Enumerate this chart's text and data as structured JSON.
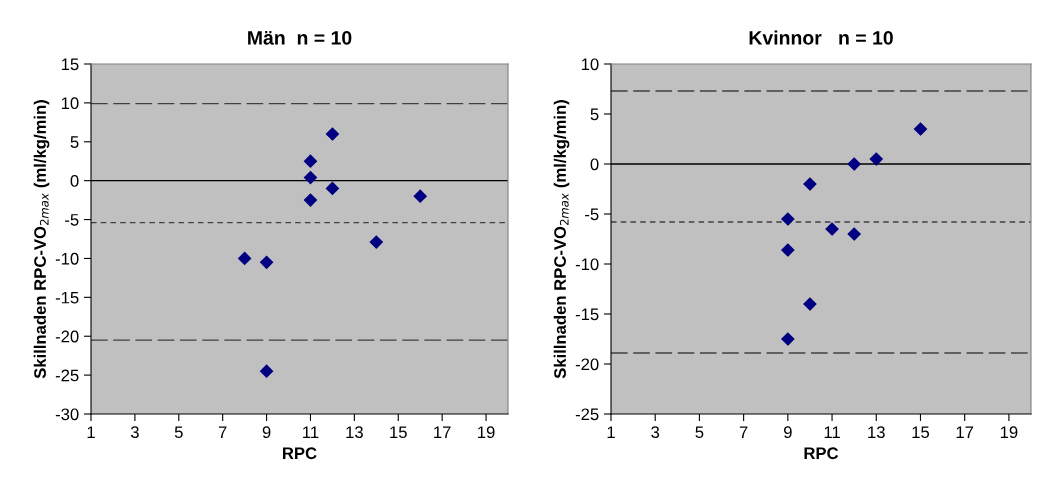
{
  "chart_data": [
    {
      "type": "scatter",
      "title": "Män  n = 10",
      "xlabel": "RPC",
      "ylabel": "Skillnaden RPC-VO$_{2max}$ (ml/kg/min)",
      "series": [
        {
          "color": "#000080",
          "x": [
            8,
            9,
            9,
            11,
            11,
            11,
            12,
            12,
            14,
            16
          ],
          "values": [
            -10,
            -10.5,
            -24.5,
            2.5,
            0.4,
            -2.5,
            6,
            -1,
            -7.9,
            -2
          ]
        }
      ],
      "marker": "diamond",
      "grid": false,
      "legend": false,
      "xlim": [
        1,
        20
      ],
      "xticks": [
        1,
        3,
        5,
        7,
        9,
        11,
        13,
        15,
        17,
        19
      ],
      "ylim": [
        -30,
        15
      ],
      "yticks": [
        -30,
        -25,
        -20,
        -15,
        -10,
        -5,
        0,
        5,
        10,
        15
      ],
      "ref_lines": [
        {
          "axis": "y",
          "value": 9.9,
          "color": "#404040",
          "line_style": "dashed"
        },
        {
          "axis": "y",
          "value": -5.4,
          "color": "#404040",
          "line_style": "dotted"
        },
        {
          "axis": "y",
          "value": -20.5,
          "color": "#404040",
          "line_style": "dashed"
        },
        {
          "axis": "y",
          "value": 0,
          "color": "#000000",
          "line_style": "solid"
        }
      ]
    },
    {
      "type": "scatter",
      "title": "Kvinnor   n = 10",
      "xlabel": "RPC",
      "ylabel": "Skillnaden RPC-VO$_{2max}$ (ml/kg/min)",
      "series": [
        {
          "color": "#000080",
          "x": [
            9,
            9,
            9,
            10,
            10,
            11,
            12,
            12,
            13,
            15
          ],
          "values": [
            -5.5,
            -8.6,
            -17.5,
            -2,
            -14,
            -6.5,
            0,
            -7,
            0.5,
            3.5
          ]
        }
      ],
      "marker": "diamond",
      "grid": false,
      "legend": false,
      "xlim": [
        1,
        20
      ],
      "xticks": [
        1,
        3,
        5,
        7,
        9,
        11,
        13,
        15,
        17,
        19
      ],
      "ylim": [
        -25,
        10
      ],
      "yticks": [
        -25,
        -20,
        -15,
        -10,
        -5,
        0,
        5,
        10
      ],
      "ref_lines": [
        {
          "axis": "y",
          "value": 7.3,
          "color": "#404040",
          "line_style": "dashed"
        },
        {
          "axis": "y",
          "value": -5.8,
          "color": "#404040",
          "line_style": "dotted"
        },
        {
          "axis": "y",
          "value": -18.9,
          "color": "#404040",
          "line_style": "dashed"
        },
        {
          "axis": "y",
          "value": 0,
          "color": "#000000",
          "line_style": "solid"
        }
      ]
    }
  ]
}
